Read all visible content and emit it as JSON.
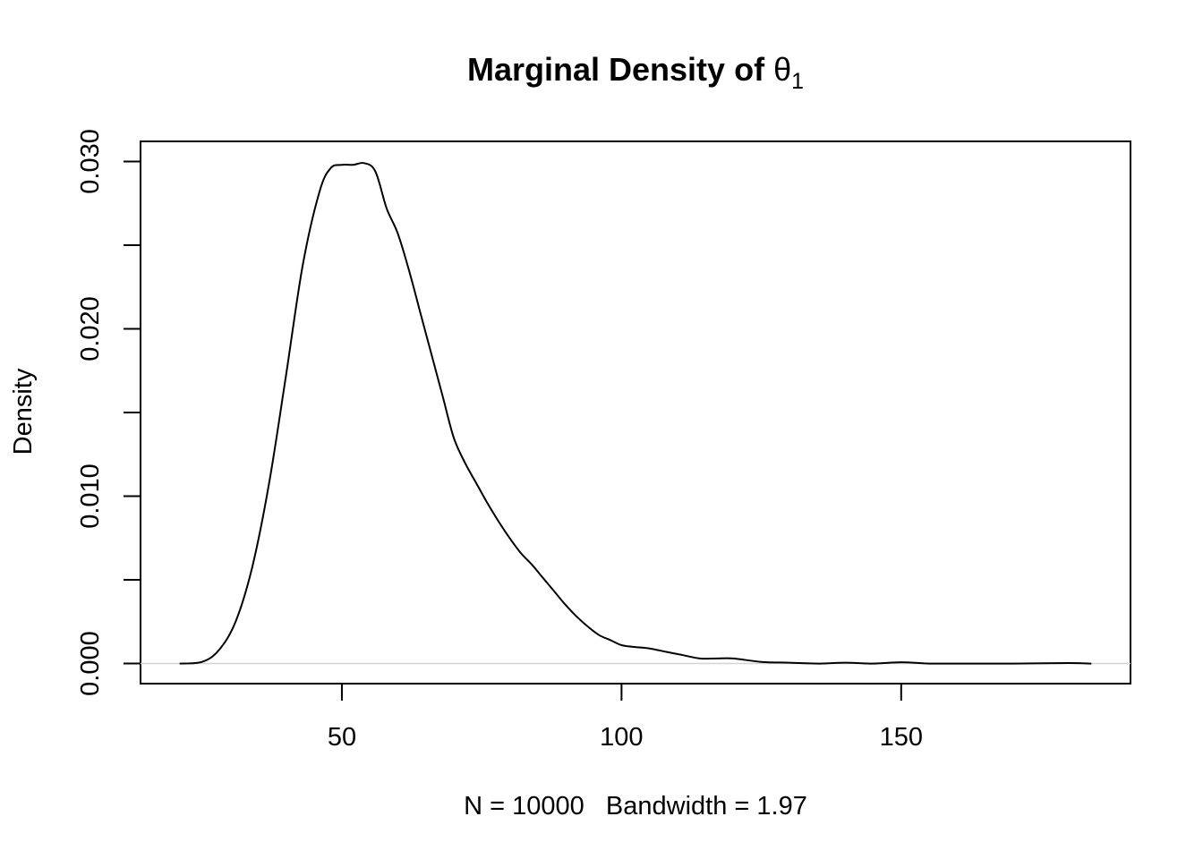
{
  "chart_data": {
    "type": "line",
    "title": "Marginal Density of ",
    "title_symbol": "θ",
    "title_subscript": "1",
    "xlabel": "N = 10000   Bandwidth = 1.97",
    "ylabel": "Density",
    "xlim": [
      14,
      191
    ],
    "ylim": [
      -0.0012,
      0.0312
    ],
    "x_ticks": [
      50,
      100,
      150
    ],
    "x_tick_labels": [
      "50",
      "100",
      "150"
    ],
    "y_ticks": [
      0.0,
      0.005,
      0.01,
      0.015,
      0.02,
      0.025,
      0.03
    ],
    "y_tick_labels": [
      "0.000",
      "",
      "0.010",
      "",
      "0.020",
      "",
      "0.030"
    ],
    "zero_line": true,
    "zero_line_color": "#d3d3d3",
    "line_color": "#000000",
    "grid": false,
    "series": [
      {
        "x": [
          21,
          25,
          28,
          31,
          34,
          37,
          40,
          43,
          46,
          48,
          50,
          52,
          54,
          56,
          58,
          60,
          62,
          64,
          66,
          68,
          70,
          72,
          74,
          76,
          78,
          80,
          82,
          84,
          86,
          88,
          90,
          92,
          94,
          96,
          98,
          100,
          102,
          105,
          108,
          111,
          114,
          117,
          120,
          125,
          130,
          135,
          140,
          145,
          150,
          155,
          160,
          170,
          180,
          184
        ],
        "y": [
          0.0,
          0.0001,
          0.0008,
          0.0025,
          0.0058,
          0.0108,
          0.0172,
          0.0238,
          0.0282,
          0.0296,
          0.0298,
          0.0298,
          0.0299,
          0.0294,
          0.0272,
          0.0257,
          0.0235,
          0.021,
          0.0185,
          0.016,
          0.0135,
          0.012,
          0.0108,
          0.0096,
          0.0085,
          0.0075,
          0.0066,
          0.0059,
          0.0051,
          0.0043,
          0.0035,
          0.0028,
          0.0022,
          0.0017,
          0.0014,
          0.0011,
          0.001,
          0.0009,
          0.0007,
          0.0005,
          0.0003,
          0.0003,
          0.0003,
          0.0001,
          5e-05,
          0.0,
          5e-05,
          0.0,
          8e-05,
          0.0,
          0.0,
          0.0,
          3e-05,
          0.0
        ]
      }
    ]
  }
}
